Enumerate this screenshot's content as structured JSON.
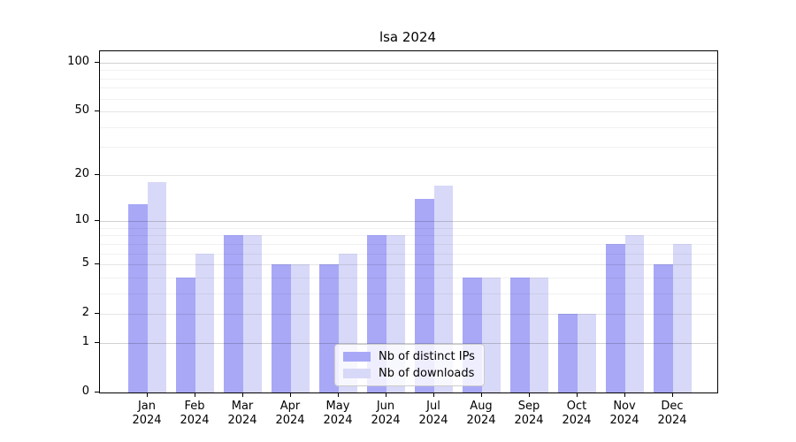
{
  "chart_data": {
    "type": "bar",
    "title": "lsa 2024",
    "year": "2024",
    "categories": [
      "Jan",
      "Feb",
      "Mar",
      "Apr",
      "May",
      "Jun",
      "Jul",
      "Aug",
      "Sep",
      "Oct",
      "Nov",
      "Dec"
    ],
    "series": [
      {
        "name": "Nb of distinct IPs",
        "color": "#a8a8f7",
        "values": [
          13,
          4,
          8,
          5,
          5,
          8,
          14,
          4,
          4,
          2,
          7,
          5
        ]
      },
      {
        "name": "Nb of downloads",
        "color": "#d8d8f8",
        "values": [
          18,
          6,
          8,
          5,
          6,
          8,
          17,
          4,
          4,
          2,
          8,
          7
        ]
      }
    ],
    "yaxis": {
      "scale": "log1p",
      "tick_values": [
        0,
        1,
        2,
        5,
        10,
        20,
        50,
        100
      ],
      "major_gridlines": [
        1,
        10,
        100
      ],
      "mid_gridlines": [
        2,
        5,
        20,
        50
      ],
      "minor_gridlines": [
        3,
        4,
        6,
        7,
        8,
        9,
        30,
        40,
        60,
        70,
        80,
        90
      ],
      "ylim": [
        0,
        118
      ]
    },
    "xlabel": "",
    "ylabel": "",
    "grid": "both",
    "legend_position": "inside-bottom-center"
  }
}
